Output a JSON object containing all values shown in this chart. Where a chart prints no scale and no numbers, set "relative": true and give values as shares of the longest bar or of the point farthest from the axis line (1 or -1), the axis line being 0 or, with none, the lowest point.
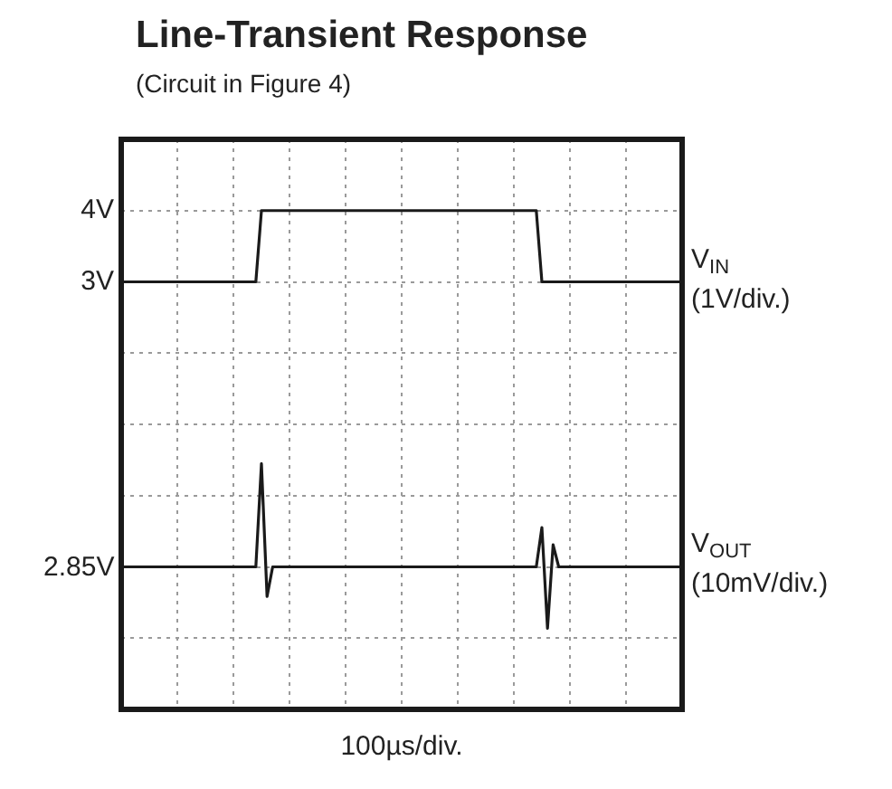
{
  "chart_data": [
    {
      "type": "line",
      "title": "Line-Transient Response",
      "subtitle": "(Circuit in Figure 4)",
      "xlabel": "100µs/div.",
      "categories": [
        null,
        null,
        null,
        null,
        null,
        null,
        null,
        null,
        null,
        null,
        null,
        null,
        null,
        null,
        null,
        null,
        null,
        null,
        null,
        null,
        null,
        null,
        null,
        null,
        null,
        null,
        null,
        null,
        null,
        null,
        null,
        null,
        null,
        null,
        null,
        null,
        null,
        null,
        null,
        null,
        null,
        null,
        null,
        null,
        null,
        null,
        null,
        null,
        null,
        null,
        null,
        null,
        null,
        null,
        null,
        null,
        null,
        null,
        null,
        null,
        null,
        null,
        null,
        null,
        null,
        null,
        null,
        null,
        null,
        null,
        null,
        null,
        null,
        null,
        null,
        null,
        null,
        null,
        null,
        null,
        null,
        null,
        null,
        null,
        null,
        null,
        null,
        null,
        null,
        null,
        null,
        null,
        null,
        null,
        null,
        null,
        null,
        null,
        null,
        null,
        null
      ],
      "ylim": [
        -3,
        5
      ],
      "yticks": [
        {
          "value": -2,
          "label": null
        },
        {
          "value": -1,
          "label": null
        },
        {
          "value": 0,
          "label": null
        },
        {
          "value": 1,
          "label": null
        },
        {
          "value": 2,
          "label": null
        },
        {
          "value": 3,
          "label": "3V"
        },
        {
          "value": 4,
          "label": "4V"
        }
      ],
      "grid": true,
      "marker": "none",
      "line_style": "solid",
      "annotations": [
        "(1V/div.)"
      ],
      "series": [
        {
          "name": "V$_{IN}$",
          "color": "#1a1a1a",
          "values": [
            3,
            3,
            3,
            3,
            3,
            3,
            3,
            3,
            3,
            3,
            3,
            3,
            3,
            3,
            3,
            3,
            3,
            3,
            3,
            3,
            3,
            3,
            3,
            3,
            3,
            4,
            4,
            4,
            4,
            4,
            4,
            4,
            4,
            4,
            4,
            4,
            4,
            4,
            4,
            4,
            4,
            4,
            4,
            4,
            4,
            4,
            4,
            4,
            4,
            4,
            4,
            4,
            4,
            4,
            4,
            4,
            4,
            4,
            4,
            4,
            4,
            4,
            4,
            4,
            4,
            4,
            4,
            4,
            4,
            4,
            4,
            4,
            4,
            4,
            4,
            3,
            3,
            3,
            3,
            3,
            3,
            3,
            3,
            3,
            3,
            3,
            3,
            3,
            3,
            3,
            3,
            3,
            3,
            3,
            3,
            3,
            3,
            3,
            3,
            3,
            3
          ]
        }
      ]
    },
    {
      "type": "line",
      "relative": true,
      "categories": [
        null,
        null,
        null,
        null,
        null,
        null,
        null,
        null,
        null,
        null,
        null,
        null,
        null,
        null,
        null,
        null,
        null,
        null,
        null,
        null,
        null,
        null,
        null,
        null,
        null,
        null,
        null,
        null,
        null,
        null,
        null,
        null,
        null,
        null,
        null,
        null,
        null,
        null,
        null,
        null,
        null,
        null,
        null,
        null,
        null,
        null,
        null,
        null,
        null,
        null,
        null,
        null,
        null,
        null,
        null,
        null,
        null,
        null,
        null,
        null,
        null,
        null,
        null,
        null,
        null,
        null,
        null,
        null,
        null,
        null,
        null,
        null,
        null,
        null,
        null,
        null,
        null,
        null,
        null,
        null,
        null,
        null,
        null,
        null,
        null,
        null,
        null,
        null,
        null,
        null,
        null,
        null,
        null,
        null,
        null,
        null,
        null,
        null,
        null,
        null,
        null
      ],
      "marker": "none",
      "line_style": "solid",
      "annotations": [
        "2.85V",
        "(10mV/div.)"
      ],
      "series": [
        {
          "name": "V$_{OUT}$",
          "color": "#1a1a1a",
          "values": [
            0.58,
            0.58,
            0.58,
            0.58,
            0.58,
            0.58,
            0.58,
            0.58,
            0.58,
            0.58,
            0.58,
            0.58,
            0.58,
            0.58,
            0.58,
            0.58,
            0.58,
            0.58,
            0.58,
            0.58,
            0.58,
            0.58,
            0.58,
            0.58,
            0.58,
            1,
            0.46,
            0.58,
            0.58,
            0.58,
            0.58,
            0.58,
            0.58,
            0.58,
            0.58,
            0.58,
            0.58,
            0.58,
            0.58,
            0.58,
            0.58,
            0.58,
            0.58,
            0.58,
            0.58,
            0.58,
            0.58,
            0.58,
            0.58,
            0.58,
            0.58,
            0.58,
            0.58,
            0.58,
            0.58,
            0.58,
            0.58,
            0.58,
            0.58,
            0.58,
            0.58,
            0.58,
            0.58,
            0.58,
            0.58,
            0.58,
            0.58,
            0.58,
            0.58,
            0.58,
            0.58,
            0.58,
            0.58,
            0.58,
            0.58,
            0.74,
            0.33,
            0.67,
            0.58,
            0.58,
            0.58,
            0.58,
            0.58,
            0.58,
            0.58,
            0.58,
            0.58,
            0.58,
            0.58,
            0.58,
            0.58,
            0.58,
            0.58,
            0.58,
            0.58,
            0.58,
            0.58,
            0.58,
            0.58,
            0.58,
            0.58
          ]
        }
      ]
    }
  ]
}
